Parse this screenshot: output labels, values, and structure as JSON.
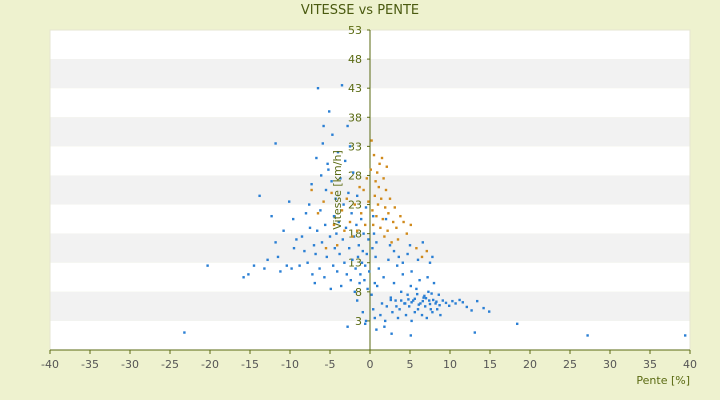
{
  "colors": {
    "page_bg": "#eef2cf",
    "band_light": "#ffffff",
    "band_shade": "#f2f2f2",
    "axis": "#5a6a12",
    "series_blue": "#2a7fd4",
    "series_orange": "#d08a1c"
  },
  "chart_data": {
    "type": "scatter",
    "title": "VITESSE vs PENTE",
    "xlabel": "Pente [%]",
    "ylabel": "Vitesse [km/h]",
    "xlim": [
      -40,
      40
    ],
    "ylim": [
      -2,
      53
    ],
    "xticks": [
      -40,
      -35,
      -30,
      -25,
      -20,
      -15,
      -10,
      -5,
      0,
      5,
      10,
      15,
      20,
      25,
      30,
      35,
      40
    ],
    "yticks": [
      3,
      8,
      13,
      18,
      23,
      28,
      33,
      38,
      43,
      48,
      53
    ],
    "grid": "horizontal bands",
    "legend": "none",
    "series": [
      {
        "color": "#2a7fd4",
        "points": [
          [
            -23.2,
            1
          ],
          [
            -20.3,
            12.5
          ],
          [
            -15.8,
            10.5
          ],
          [
            -15.2,
            11
          ],
          [
            -14.5,
            12.5
          ],
          [
            -13.8,
            24.5
          ],
          [
            -13.2,
            12
          ],
          [
            -12.8,
            13.5
          ],
          [
            -12.3,
            21
          ],
          [
            -11.8,
            16.5
          ],
          [
            -11.5,
            14
          ],
          [
            -11.8,
            33.5
          ],
          [
            -11.2,
            11.5
          ],
          [
            -10.8,
            18.5
          ],
          [
            -10.4,
            12.5
          ],
          [
            -10.1,
            23.5
          ],
          [
            -9.8,
            12
          ],
          [
            -9.5,
            15.5
          ],
          [
            -9.2,
            17
          ],
          [
            -9.6,
            20.5
          ],
          [
            -8.8,
            12.5
          ],
          [
            -8.5,
            17.5
          ],
          [
            -8.2,
            15
          ],
          [
            -8.0,
            21.5
          ],
          [
            -7.8,
            13
          ],
          [
            -7.5,
            19
          ],
          [
            -7.6,
            23
          ],
          [
            -7.2,
            11
          ],
          [
            -7.0,
            16
          ],
          [
            -7.3,
            26.5
          ],
          [
            -6.9,
            9.5
          ],
          [
            -6.8,
            14.5
          ],
          [
            -6.6,
            18.5
          ],
          [
            -6.7,
            31
          ],
          [
            -6.5,
            43
          ],
          [
            -6.3,
            12
          ],
          [
            -6.2,
            22
          ],
          [
            -6.1,
            28
          ],
          [
            -6.0,
            16.5
          ],
          [
            -5.9,
            33.5
          ],
          [
            -5.8,
            36.5
          ],
          [
            -5.7,
            10.5
          ],
          [
            -5.6,
            19.5
          ],
          [
            -5.5,
            25.5
          ],
          [
            -5.4,
            14
          ],
          [
            -5.3,
            30
          ],
          [
            -5.2,
            29
          ],
          [
            -5.1,
            39
          ],
          [
            -5.0,
            17.5
          ],
          [
            -4.9,
            8.5
          ],
          [
            -4.8,
            27
          ],
          [
            -4.7,
            35
          ],
          [
            -4.6,
            12.5
          ],
          [
            -4.5,
            21
          ],
          [
            -4.4,
            15.5
          ],
          [
            -4.3,
            24
          ],
          [
            -4.2,
            18
          ],
          [
            -4.1,
            11.5
          ],
          [
            -4.0,
            32
          ],
          [
            -3.9,
            20
          ],
          [
            -3.8,
            14.5
          ],
          [
            -3.7,
            27.5
          ],
          [
            -3.6,
            9
          ],
          [
            -3.5,
            43.5
          ],
          [
            -3.4,
            17
          ],
          [
            -3.3,
            23
          ],
          [
            -3.2,
            13
          ],
          [
            -3.1,
            30.5
          ],
          [
            -3.0,
            19
          ],
          [
            -2.9,
            11
          ],
          [
            -2.8,
            36.5
          ],
          [
            -2.7,
            25
          ],
          [
            -2.6,
            15.5
          ],
          [
            -2.5,
            33
          ],
          [
            -2.4,
            10
          ],
          [
            -2.3,
            21.5
          ],
          [
            -2.2,
            13.5
          ],
          [
            -2.1,
            28.5
          ],
          [
            -2.0,
            17.5
          ],
          [
            -1.9,
            8
          ],
          [
            -1.8,
            12
          ],
          [
            -1.7,
            19.5
          ],
          [
            -1.6,
            24.5
          ],
          [
            -1.5,
            14
          ],
          [
            -1.4,
            16
          ],
          [
            -1.3,
            9.5
          ],
          [
            -1.2,
            11
          ],
          [
            -1.1,
            20.5
          ],
          [
            -1.0,
            13
          ],
          [
            -0.9,
            15
          ],
          [
            -0.8,
            18
          ],
          [
            -0.7,
            10
          ],
          [
            -0.6,
            12.5
          ],
          [
            -0.5,
            22.5
          ],
          [
            -0.4,
            14.5
          ],
          [
            -0.3,
            8.5
          ],
          [
            -0.2,
            17
          ],
          [
            -0.1,
            11.5
          ],
          [
            -2.8,
            2
          ],
          [
            -1.6,
            6.5
          ],
          [
            -0.9,
            4.5
          ],
          [
            -0.5,
            3
          ],
          [
            0.2,
            7.5
          ],
          [
            0.4,
            5
          ],
          [
            0.6,
            3.5
          ],
          [
            0.9,
            9
          ],
          [
            1.1,
            12
          ],
          [
            1.3,
            4
          ],
          [
            1.5,
            6
          ],
          [
            1.7,
            10.5
          ],
          [
            1.9,
            3
          ],
          [
            2.1,
            5.5
          ],
          [
            2.3,
            13.5
          ],
          [
            2.6,
            7
          ],
          [
            2.8,
            4.5
          ],
          [
            3.0,
            9.5
          ],
          [
            3.2,
            6.5
          ],
          [
            3.4,
            12.5
          ],
          [
            3.5,
            3.5
          ],
          [
            3.7,
            5
          ],
          [
            3.9,
            8
          ],
          [
            4.1,
            11
          ],
          [
            4.3,
            6
          ],
          [
            4.5,
            4
          ],
          [
            4.7,
            7.5
          ],
          [
            4.9,
            5.5
          ],
          [
            5.1,
            9
          ],
          [
            5.2,
            3
          ],
          [
            5.4,
            6.5
          ],
          [
            5.6,
            4.5
          ],
          [
            5.8,
            8.5
          ],
          [
            6.0,
            5
          ],
          [
            6.2,
            10
          ],
          [
            6.3,
            6
          ],
          [
            6.5,
            4
          ],
          [
            6.7,
            7
          ],
          [
            6.9,
            5.5
          ],
          [
            7.1,
            3.5
          ],
          [
            7.3,
            8
          ],
          [
            7.4,
            6.5
          ],
          [
            7.6,
            5
          ],
          [
            7.8,
            4.5
          ],
          [
            8.0,
            9.5
          ],
          [
            8.2,
            6
          ],
          [
            8.4,
            5
          ],
          [
            8.6,
            7.5
          ],
          [
            8.8,
            4
          ],
          [
            3.3,
            5.5
          ],
          [
            3.9,
            6.5
          ],
          [
            4.4,
            6
          ],
          [
            4.8,
            6.7
          ],
          [
            5.2,
            6.2
          ],
          [
            5.6,
            6.8
          ],
          [
            6.1,
            5.8
          ],
          [
            6.6,
            6.4
          ],
          [
            7.0,
            6.9
          ],
          [
            7.5,
            5.9
          ],
          [
            7.9,
            6.6
          ],
          [
            8.3,
            6.3
          ],
          [
            8.7,
            5.7
          ],
          [
            9.1,
            6.5
          ],
          [
            9.5,
            6.1
          ],
          [
            9.9,
            5.6
          ],
          [
            10.3,
            6.4
          ],
          [
            10.7,
            6.0
          ],
          [
            11.2,
            6.6
          ],
          [
            11.6,
            6.2
          ],
          [
            12.1,
            5.4
          ],
          [
            12.7,
            4.8
          ],
          [
            13.4,
            6.4
          ],
          [
            14.2,
            5.2
          ],
          [
            14.9,
            4.6
          ],
          [
            2.6,
            6.6
          ],
          [
            5.9,
            7.6
          ],
          [
            6.8,
            7.3
          ],
          [
            7.7,
            7.7
          ],
          [
            4.1,
            13
          ],
          [
            4.7,
            14.5
          ],
          [
            5.2,
            11.5
          ],
          [
            6.0,
            13.5
          ],
          [
            6.6,
            16.5
          ],
          [
            7.2,
            10.5
          ],
          [
            7.8,
            14
          ],
          [
            2.0,
            20.5
          ],
          [
            2.5,
            16
          ],
          [
            3.0,
            15
          ],
          [
            3.6,
            14
          ],
          [
            5.0,
            16
          ],
          [
            7.5,
            13
          ],
          [
            5.1,
            0.5
          ],
          [
            13.1,
            1
          ],
          [
            18.4,
            2.5
          ],
          [
            27.2,
            0.5
          ],
          [
            39.4,
            0.5
          ],
          [
            -0.6,
            2.5
          ],
          [
            0.8,
            1.5
          ],
          [
            1.8,
            2
          ],
          [
            2.7,
            0.8
          ],
          [
            0.3,
            15.5
          ],
          [
            0.5,
            18
          ],
          [
            0.7,
            14
          ],
          [
            0.4,
            21
          ],
          [
            0.8,
            16.5
          ],
          [
            0.6,
            9.5
          ]
        ]
      },
      {
        "color": "#d08a1c",
        "points": [
          [
            -7.3,
            25.5
          ],
          [
            -6.5,
            21.5
          ],
          [
            -5.8,
            23.5
          ],
          [
            -5.5,
            15.5
          ],
          [
            -4.8,
            25
          ],
          [
            -4.5,
            19.5
          ],
          [
            -4.1,
            16
          ],
          [
            -3.5,
            22
          ],
          [
            -3.2,
            18.5
          ],
          [
            -2.9,
            24
          ],
          [
            -2.5,
            20
          ],
          [
            -2.2,
            17.5
          ],
          [
            -1.9,
            23
          ],
          [
            -1.6,
            18.5
          ],
          [
            -1.3,
            26
          ],
          [
            -1.1,
            21.5
          ],
          [
            -0.8,
            25.5
          ],
          [
            -0.6,
            19.5
          ],
          [
            -0.4,
            27.5
          ],
          [
            -0.2,
            23.5
          ],
          [
            0.1,
            29
          ],
          [
            0.2,
            34
          ],
          [
            0.3,
            22
          ],
          [
            0.4,
            19.5
          ],
          [
            0.5,
            31.5
          ],
          [
            0.6,
            24.5
          ],
          [
            0.7,
            27
          ],
          [
            0.8,
            21
          ],
          [
            0.9,
            28.5
          ],
          [
            1.0,
            23
          ],
          [
            1.1,
            26
          ],
          [
            1.2,
            30
          ],
          [
            1.3,
            19
          ],
          [
            1.4,
            24
          ],
          [
            1.5,
            31
          ],
          [
            1.6,
            20.5
          ],
          [
            1.7,
            27.5
          ],
          [
            1.8,
            17.5
          ],
          [
            1.9,
            22.5
          ],
          [
            2.0,
            25.5
          ],
          [
            2.1,
            29.5
          ],
          [
            2.2,
            18.5
          ],
          [
            2.3,
            21.5
          ],
          [
            2.5,
            24
          ],
          [
            2.7,
            16.5
          ],
          [
            2.9,
            20
          ],
          [
            3.1,
            22.5
          ],
          [
            3.3,
            19
          ],
          [
            3.5,
            17
          ],
          [
            3.8,
            21
          ],
          [
            4.2,
            20
          ],
          [
            4.6,
            18
          ],
          [
            5.1,
            19.5
          ],
          [
            5.8,
            15.5
          ],
          [
            6.5,
            14
          ],
          [
            7.1,
            15
          ]
        ]
      }
    ]
  }
}
